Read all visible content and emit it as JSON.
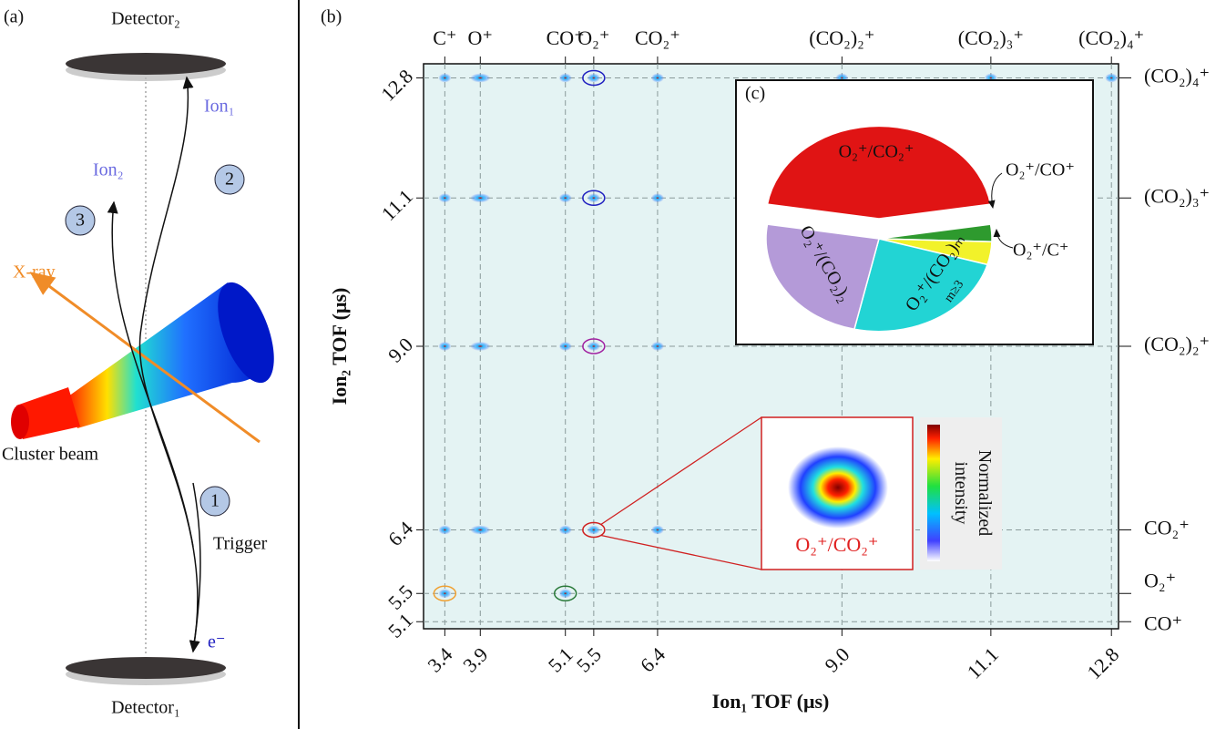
{
  "panel_a": {
    "label": "(a)",
    "detector_top": "Detector₂",
    "detector_bottom": "Detector₁",
    "ion1": "Ion₁",
    "ion2": "Ion₂",
    "xray": "X-ray",
    "beam": "Cluster beam",
    "trigger": "Trigger",
    "electron": "e⁻",
    "steps": [
      "1",
      "2",
      "3"
    ]
  },
  "chart_data": [
    {
      "type": "map",
      "label": "(b)",
      "xlabel": "Ion₁ TOF (μs)",
      "ylabel": "Ion₂ TOF (μs)",
      "xlim": [
        3.1,
        12.9
      ],
      "ylim": [
        5.0,
        13.0
      ],
      "xticks": [
        3.4,
        3.9,
        5.1,
        5.5,
        6.4,
        {
          "value": 9,
          "label": "9.0"
        },
        11.1,
        12.8
      ],
      "yticks": [
        5.1,
        5.5,
        6.4,
        {
          "value": 9,
          "label": "9.0"
        },
        11.1,
        12.8
      ],
      "top_labels": [
        "C⁺",
        "O⁺",
        "CO⁺",
        "O₂⁺",
        "CO₂⁺",
        "(CO₂)₂⁺",
        "(CO₂)₃⁺",
        "(CO₂)₄⁺"
      ],
      "right_labels": [
        "CO⁺",
        "O₂⁺",
        "CO₂⁺",
        "(CO₂)₂⁺",
        "(CO₂)₃⁺",
        "(CO₂)₄⁺"
      ],
      "inset_label": "O₂⁺/CO₂⁺",
      "colorbar_label": "Normalized intensity",
      "grid": true
    },
    {
      "type": "pie",
      "label": "(c)",
      "categories": [
        "O₂⁺/CO₂⁺",
        "O₂⁺/CO⁺",
        "O₂⁺/C⁺",
        "O₂⁺/(CO₂)ₘ",
        "O₂⁺/(CO₂)₂"
      ],
      "subscript": "m≥3",
      "values": [
        45,
        3,
        4,
        24,
        24
      ],
      "colors": [
        "#e01414",
        "#2e9a2e",
        "#f2f22a",
        "#22d4d4",
        "#b49ad8"
      ]
    }
  ]
}
